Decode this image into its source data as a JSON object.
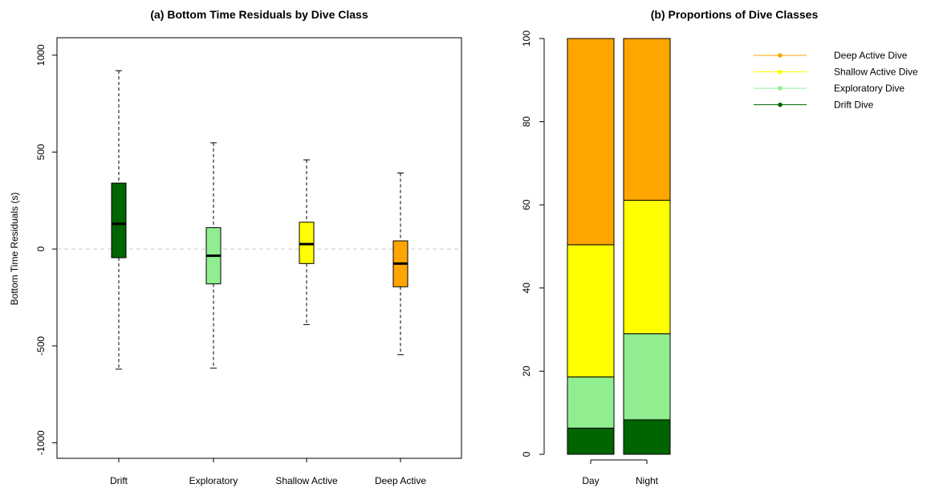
{
  "chart_data": [
    {
      "type": "boxplot",
      "title": "(a) Bottom Time Residuals by Dive Class",
      "xlabel": "",
      "ylabel": "Bottom Time Residuals (s)",
      "ylim": [
        -1080,
        1090
      ],
      "yticks": [
        -1000,
        -500,
        0,
        500,
        1000
      ],
      "reference_line": 0,
      "categories": [
        "Drift",
        "Exploratory",
        "Shallow Active",
        "Deep Active"
      ],
      "boxes": [
        {
          "category": "Drift",
          "min": -620,
          "q1": -45,
          "median": 130,
          "q3": 340,
          "max": 920,
          "color": "#006400"
        },
        {
          "category": "Exploratory",
          "min": -615,
          "q1": -180,
          "median": -35,
          "q3": 110,
          "max": 548,
          "color": "#90EE90"
        },
        {
          "category": "Shallow Active",
          "min": -390,
          "q1": -75,
          "median": 25,
          "q3": 138,
          "max": 460,
          "color": "#FFFF00"
        },
        {
          "category": "Deep Active",
          "min": -545,
          "q1": -195,
          "median": -75,
          "q3": 42,
          "max": 392,
          "color": "#FFA500"
        }
      ]
    },
    {
      "type": "stacked-bar",
      "title": "(b) Proportions of Dive Classes",
      "xlabel": "",
      "ylabel": "",
      "ylim": [
        0,
        100
      ],
      "yticks": [
        0,
        20,
        40,
        60,
        80,
        100
      ],
      "categories": [
        "Day",
        "Night"
      ],
      "series": [
        {
          "name": "Drift Dive",
          "color": "#006400",
          "values": [
            6.3,
            8.3
          ]
        },
        {
          "name": "Exploratory Dive",
          "color": "#90EE90",
          "values": [
            12.3,
            20.7
          ]
        },
        {
          "name": "Shallow Active Dive",
          "color": "#FFFF00",
          "values": [
            31.8,
            32.1
          ]
        },
        {
          "name": "Deep Active Dive",
          "color": "#FFA500",
          "values": [
            49.6,
            38.9
          ]
        }
      ],
      "legend": {
        "position": "top-right",
        "order": [
          "Deep Active Dive",
          "Shallow Active Dive",
          "Exploratory Dive",
          "Drift Dive"
        ]
      }
    }
  ]
}
